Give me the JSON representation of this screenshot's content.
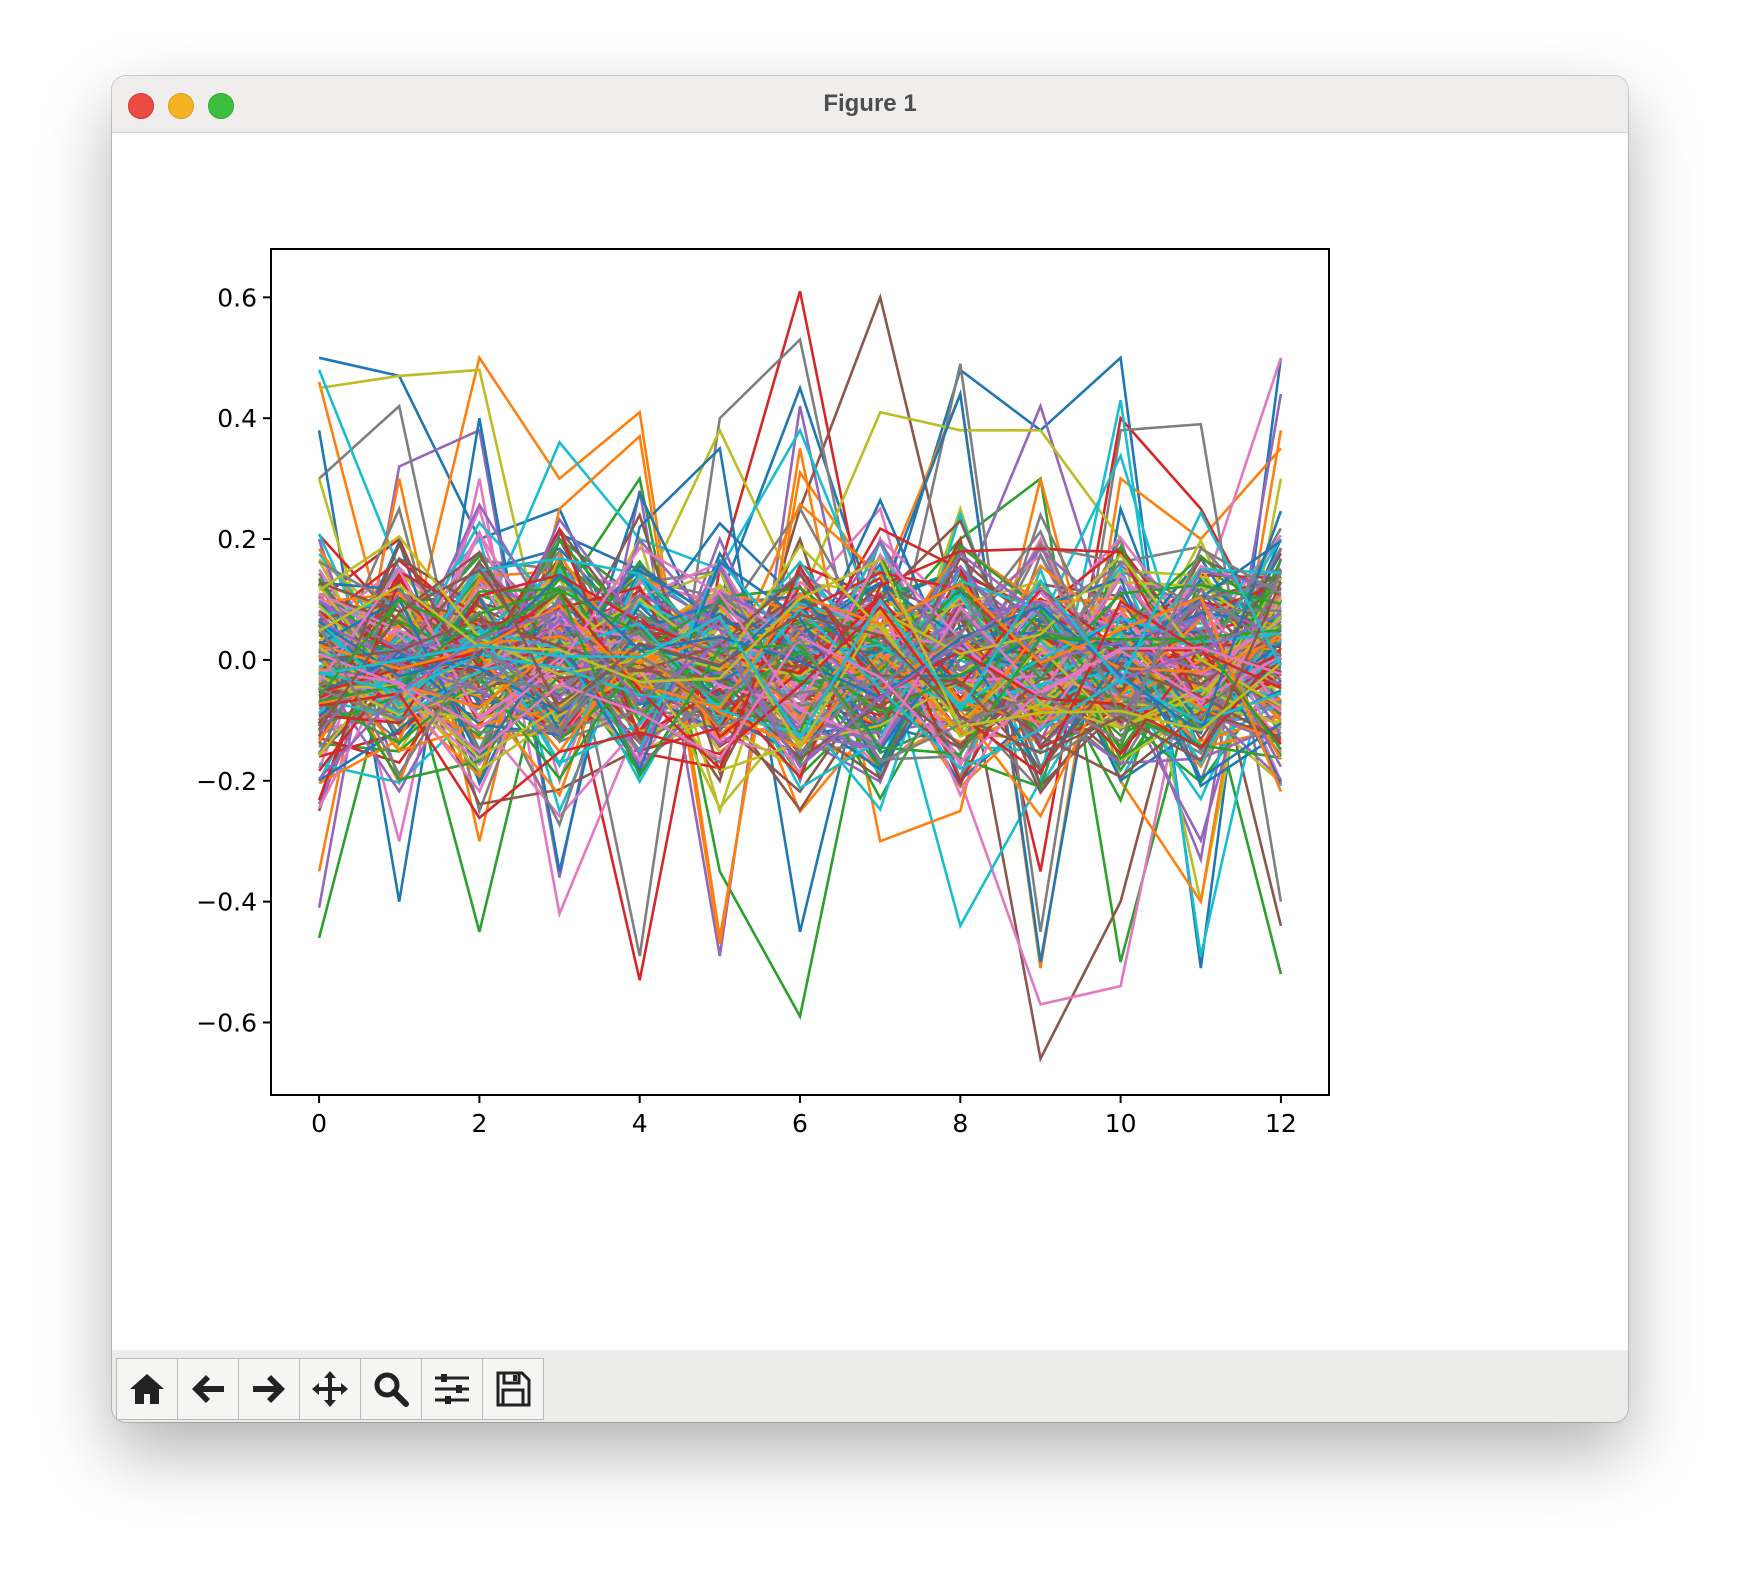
{
  "window": {
    "title": "Figure 1"
  },
  "toolbar": {
    "buttons": [
      {
        "name": "home-button",
        "icon": "home-icon"
      },
      {
        "name": "back-button",
        "icon": "arrow-left-icon"
      },
      {
        "name": "forward-button",
        "icon": "arrow-right-icon"
      },
      {
        "name": "pan-button",
        "icon": "move-icon"
      },
      {
        "name": "zoom-button",
        "icon": "magnifier-icon"
      },
      {
        "name": "configure-subplots-button",
        "icon": "sliders-icon"
      },
      {
        "name": "save-button",
        "icon": "floppy-disk-icon"
      }
    ]
  },
  "chart_data": {
    "type": "line",
    "title": "",
    "xlabel": "",
    "ylabel": "",
    "x": [
      0,
      1,
      2,
      3,
      4,
      5,
      6,
      7,
      8,
      9,
      10,
      11,
      12
    ],
    "xlim": [
      -0.6,
      12.6
    ],
    "ylim": [
      -0.72,
      0.68
    ],
    "x_ticks": [
      "0",
      "2",
      "4",
      "6",
      "8",
      "10",
      "12"
    ],
    "x_tick_values": [
      0,
      2,
      4,
      6,
      8,
      10,
      12
    ],
    "y_ticks": [
      "0.6",
      "0.4",
      "0.2",
      "0.0",
      "−0.2",
      "−0.4",
      "−0.6"
    ],
    "y_tick_values": [
      0.6,
      0.4,
      0.2,
      0.0,
      -0.2,
      -0.4,
      -0.6
    ],
    "grid": false,
    "legend": "none",
    "series_count": 200,
    "note_values": "noisy series; values per series at x=0..12",
    "colors": [
      "#1f77b4",
      "#ff7f0e",
      "#2ca02c",
      "#d62728",
      "#9467bd",
      "#8c564b",
      "#e377c2",
      "#7f7f7f",
      "#bcbd22",
      "#17becf"
    ],
    "series": [
      {
        "values": [
          0.5,
          0.47,
          0.2,
          0.25,
          -0.05,
          0.1,
          0.45,
          0.05,
          0.48,
          0.38,
          0.5,
          -0.51,
          0.5
        ]
      },
      {
        "values": [
          0.46,
          -0.05,
          0.5,
          0.3,
          0.41,
          -0.46,
          0.31,
          0.12,
          0.44,
          -0.51,
          0.3,
          0.2,
          0.35
        ]
      },
      {
        "values": [
          -0.46,
          0.05,
          -0.45,
          0.1,
          0.3,
          -0.35,
          -0.59,
          0.05,
          0.2,
          0.3,
          -0.5,
          0.0,
          -0.52
        ]
      },
      {
        "values": [
          0.1,
          0.2,
          -0.1,
          0.05,
          -0.53,
          0.15,
          0.61,
          -0.05,
          0.2,
          -0.35,
          0.4,
          0.25,
          0.0
        ]
      },
      {
        "values": [
          -0.41,
          0.32,
          0.38,
          -0.36,
          0.28,
          -0.49,
          0.42,
          -0.2,
          0.1,
          0.42,
          0.0,
          -0.33,
          0.44
        ]
      },
      {
        "values": [
          0.05,
          -0.1,
          0.1,
          -0.1,
          0.0,
          -0.2,
          0.25,
          0.6,
          0.05,
          -0.66,
          -0.4,
          0.1,
          -0.44
        ]
      },
      {
        "values": [
          0.2,
          -0.3,
          0.3,
          -0.42,
          -0.1,
          0.1,
          0.1,
          0.25,
          -0.2,
          -0.57,
          -0.54,
          0.1,
          0.5
        ]
      },
      {
        "values": [
          0.3,
          0.42,
          -0.2,
          0.15,
          -0.49,
          0.4,
          0.53,
          -0.1,
          0.49,
          -0.45,
          0.38,
          0.39,
          -0.4
        ]
      },
      {
        "values": [
          0.45,
          0.47,
          0.48,
          -0.1,
          0.1,
          0.38,
          0.1,
          0.41,
          0.38,
          0.38,
          0.2,
          -0.4,
          0.3
        ]
      },
      {
        "values": [
          0.48,
          0.15,
          0.05,
          0.36,
          0.2,
          0.15,
          0.38,
          0.05,
          -0.44,
          -0.2,
          0.43,
          -0.49,
          0.1
        ]
      },
      {
        "values": [
          0.38,
          -0.4,
          0.4,
          -0.35,
          0.22,
          0.35,
          -0.45,
          0.1,
          0.44,
          -0.5,
          0.25,
          -0.1,
          0.2
        ]
      },
      {
        "values": [
          -0.35,
          0.3,
          -0.3,
          0.25,
          0.37,
          -0.47,
          0.35,
          -0.3,
          -0.25,
          0.3,
          -0.2,
          -0.4,
          0.38
        ]
      },
      {
        "values": [
          0.1,
          0.05,
          -0.2,
          0.2,
          0.1,
          0.0,
          -0.1,
          0.1,
          0.15,
          0.0,
          -0.05,
          0.1,
          0.0
        ]
      },
      {
        "values": [
          -0.1,
          0.1,
          0.0,
          -0.1,
          0.05,
          0.1,
          0.0,
          -0.05,
          0.0,
          0.1,
          0.05,
          -0.1,
          0.05
        ]
      },
      {
        "values": [
          0.2,
          -0.2,
          0.15,
          0.0,
          -0.15,
          0.2,
          -0.1,
          0.05,
          -0.15,
          0.1,
          0.0,
          0.05,
          -0.1
        ]
      },
      {
        "values": [
          -0.25,
          0.15,
          -0.1,
          0.2,
          -0.05,
          -0.1,
          0.2,
          -0.2,
          0.1,
          -0.05,
          0.15,
          -0.15,
          0.1
        ]
      },
      {
        "values": [
          0.15,
          -0.05,
          0.25,
          -0.2,
          0.15,
          -0.05,
          0.05,
          0.1,
          -0.05,
          0.2,
          -0.1,
          0.1,
          -0.2
        ]
      },
      {
        "values": [
          -0.05,
          0.25,
          -0.25,
          0.1,
          -0.1,
          0.15,
          -0.2,
          0.2,
          -0.1,
          -0.05,
          0.2,
          -0.2,
          0.15
        ]
      },
      {
        "values": [
          0.3,
          -0.15,
          0.05,
          -0.05,
          0.2,
          -0.25,
          0.15,
          -0.15,
          0.25,
          -0.15,
          0.05,
          0.15,
          -0.05
        ]
      },
      {
        "values": [
          -0.2,
          0.05,
          0.2,
          -0.25,
          0.05,
          0.05,
          -0.05,
          0.15,
          -0.2,
          0.15,
          -0.2,
          0.05,
          0.2
        ]
      }
    ]
  }
}
